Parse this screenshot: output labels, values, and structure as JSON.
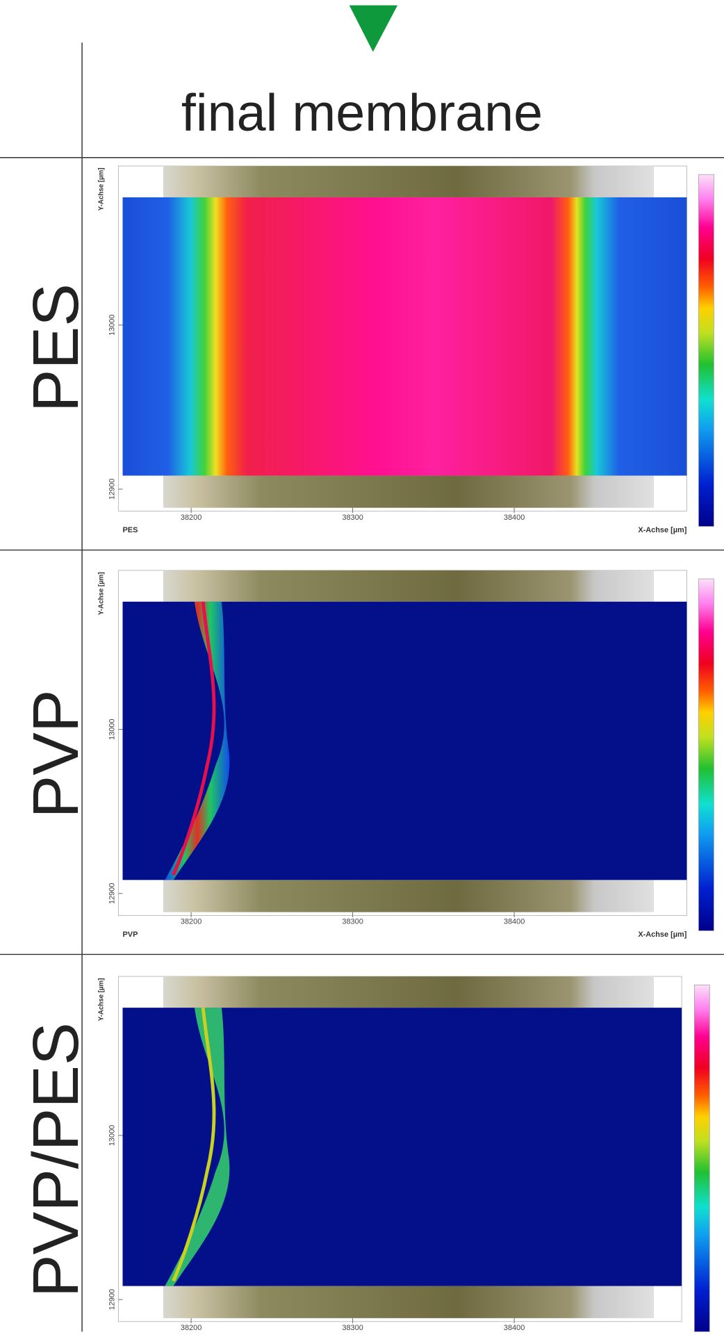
{
  "header": {
    "title": "final membrane"
  },
  "rows": [
    {
      "label": "PES",
      "y_axis_label": "Y-Achse [µm]",
      "y_ticks": [
        "13000",
        "12900"
      ],
      "x_ticks": [
        "38200",
        "38300",
        "38400"
      ],
      "caption": "PES",
      "x_axis_label": "X-Achse [µm]"
    },
    {
      "label": "PVP",
      "y_axis_label": "Y-Achse [µm]",
      "y_ticks": [
        "13000",
        "12900"
      ],
      "x_ticks": [
        "38200",
        "38300",
        "38400"
      ],
      "caption": "PVP",
      "x_axis_label": "X-Achse [µm]"
    },
    {
      "label": "PVP/PES",
      "y_axis_label": "Y-Achse [µm]",
      "y_ticks": [
        "13000",
        "12900"
      ],
      "x_ticks": [
        "38200",
        "38300",
        "38400"
      ]
    }
  ]
}
